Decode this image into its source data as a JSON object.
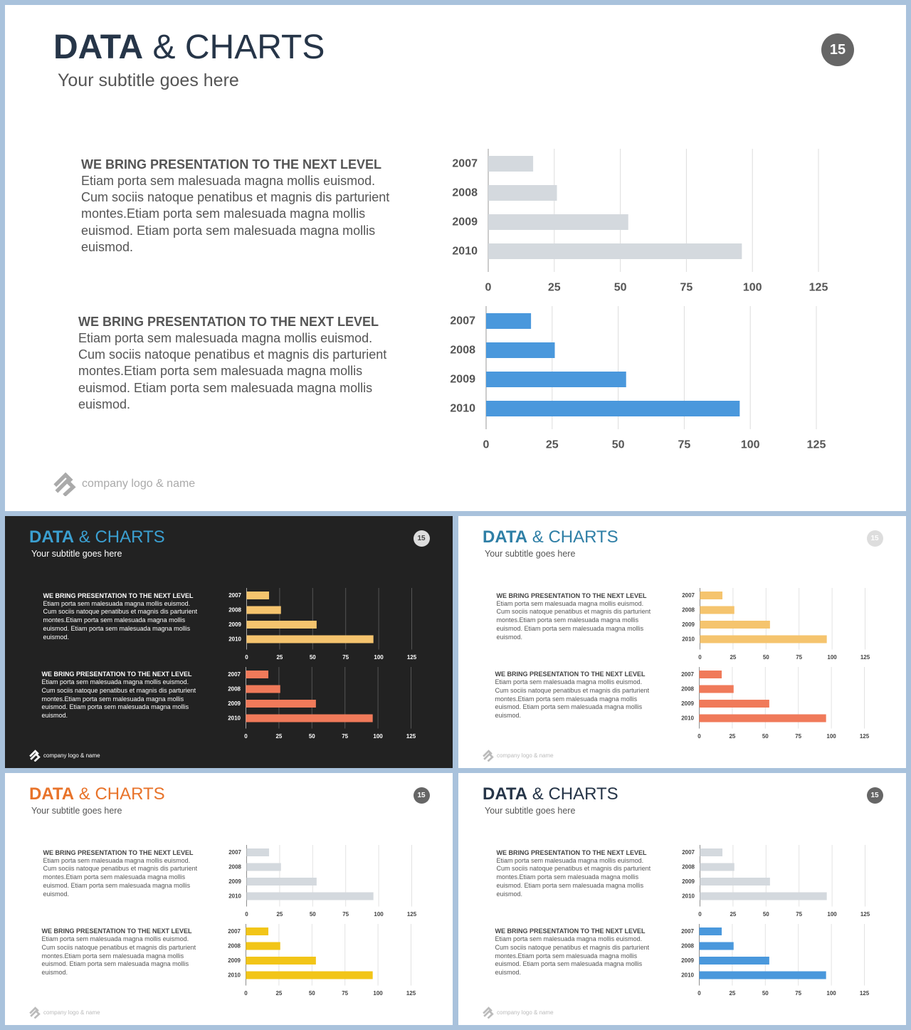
{
  "slides": [
    {
      "id": "main",
      "title_bold": "DATA",
      "title_rest": " & CHARTS",
      "subtitle": "Your subtitle goes here",
      "page_number": "15",
      "footer": "company logo & name",
      "theme": {
        "bg": "#ffffff",
        "title_bold": "#263548",
        "title_rest": "#263548",
        "subtitle": "#555555",
        "badge_bg": "#666666",
        "badge_text": "#ffffff",
        "heading": "#555555",
        "body": "#555555",
        "axis_label": "#555555",
        "grid": "#dddddd",
        "footer": "#aaaaaa"
      },
      "blocks": [
        {
          "heading": "WE BRING PRESENTATION TO THE NEXT LEVEL",
          "body": "Etiam porta sem malesuada magna mollis euismod. Cum sociis natoque penatibus et magnis dis parturient montes.Etiam porta sem malesuada magna mollis euismod. Etiam porta sem malesuada magna mollis euismod.",
          "bar_color": "#d4d9de"
        },
        {
          "heading": "WE BRING PRESENTATION TO THE NEXT LEVEL",
          "body": "Etiam porta sem malesuada magna mollis euismod. Cum sociis natoque penatibus et magnis dis parturient montes.Etiam porta sem malesuada magna mollis euismod. Etiam porta sem malesuada magna mollis euismod.",
          "bar_color": "#4a98dc"
        }
      ]
    },
    {
      "id": "dark",
      "title_bold": "DATA",
      "title_rest": " & CHARTS",
      "subtitle": "Your subtitle goes here",
      "page_number": "15",
      "footer": "company logo & name",
      "theme": {
        "bg": "#222222",
        "title_bold": "#3b9fd0",
        "title_rest": "#3b9fd0",
        "subtitle": "#ffffff",
        "badge_bg": "#dddddd",
        "badge_text": "#444444",
        "heading": "#ffffff",
        "body": "#ffffff",
        "axis_label": "#ffffff",
        "grid": "#555555",
        "footer": "#ffffff"
      },
      "blocks": [
        {
          "heading": "WE BRING PRESENTATION TO THE NEXT LEVEL",
          "body": "Etiam porta sem malesuada magna mollis euismod. Cum sociis natoque penatibus et magnis dis parturient montes.Etiam porta sem malesuada magna mollis euismod. Etiam porta sem malesuada magna mollis euismod.",
          "bar_color": "#f5c46e"
        },
        {
          "heading": "WE BRING PRESENTATION TO THE NEXT LEVEL",
          "body": "Etiam porta sem malesuada magna mollis euismod. Cum sociis natoque penatibus et magnis dis parturient montes.Etiam porta sem malesuada magna mollis euismod. Etiam porta sem malesuada magna mollis euismod.",
          "bar_color": "#f07a5a"
        }
      ]
    },
    {
      "id": "light-teal",
      "title_bold": "DATA",
      "title_rest": " & CHARTS",
      "subtitle": "Your subtitle goes here",
      "page_number": "15",
      "footer": "company logo & name",
      "theme": {
        "bg": "#ffffff",
        "title_bold": "#2f7fa6",
        "title_rest": "#2f7fa6",
        "subtitle": "#555555",
        "badge_bg": "#dddddd",
        "badge_text": "#ffffff",
        "heading": "#444444",
        "body": "#555555",
        "axis_label": "#444444",
        "grid": "#e2e2e2",
        "footer": "#bbbbbb"
      },
      "blocks": [
        {
          "heading": "WE BRING PRESENTATION TO THE NEXT LEVEL",
          "body": "Etiam porta sem malesuada magna mollis euismod. Cum sociis natoque penatibus et magnis dis parturient montes.Etiam porta sem malesuada magna mollis euismod. Etiam porta sem malesuada magna mollis euismod.",
          "bar_color": "#f5c46e"
        },
        {
          "heading": "WE BRING PRESENTATION TO THE NEXT LEVEL",
          "body": "Etiam porta sem malesuada magna mollis euismod. Cum sociis natoque penatibus et magnis dis parturient montes.Etiam porta sem malesuada magna mollis euismod. Etiam porta sem malesuada magna mollis euismod.",
          "bar_color": "#f07a5a"
        }
      ]
    },
    {
      "id": "light-orange",
      "title_bold": "DATA",
      "title_rest": " & CHARTS",
      "subtitle": "Your subtitle goes here",
      "page_number": "15",
      "footer": "company logo & name",
      "theme": {
        "bg": "#ffffff",
        "title_bold": "#e8732a",
        "title_rest": "#e8732a",
        "subtitle": "#555555",
        "badge_bg": "#666666",
        "badge_text": "#ffffff",
        "heading": "#444444",
        "body": "#555555",
        "axis_label": "#444444",
        "grid": "#e2e2e2",
        "footer": "#bbbbbb"
      },
      "blocks": [
        {
          "heading": "WE BRING PRESENTATION TO THE NEXT LEVEL",
          "body": "Etiam porta sem malesuada magna mollis euismod. Cum sociis natoque penatibus et magnis dis parturient montes.Etiam porta sem malesuada magna mollis euismod. Etiam porta sem malesuada magna mollis euismod.",
          "bar_color": "#d4d9de"
        },
        {
          "heading": "WE BRING PRESENTATION TO THE NEXT LEVEL",
          "body": "Etiam porta sem malesuada magna mollis euismod. Cum sociis natoque penatibus et magnis dis parturient montes.Etiam porta sem malesuada magna mollis euismod. Etiam porta sem malesuada magna mollis euismod.",
          "bar_color": "#f2c518"
        }
      ]
    },
    {
      "id": "light-navy",
      "title_bold": "DATA",
      "title_rest": " & CHARTS",
      "subtitle": "Your subtitle goes here",
      "page_number": "15",
      "footer": "company logo & name",
      "theme": {
        "bg": "#ffffff",
        "title_bold": "#263548",
        "title_rest": "#263548",
        "subtitle": "#555555",
        "badge_bg": "#666666",
        "badge_text": "#ffffff",
        "heading": "#444444",
        "body": "#555555",
        "axis_label": "#444444",
        "grid": "#e2e2e2",
        "footer": "#bbbbbb"
      },
      "blocks": [
        {
          "heading": "WE BRING PRESENTATION TO THE NEXT LEVEL",
          "body": "Etiam porta sem malesuada magna mollis euismod. Cum sociis natoque penatibus et magnis dis parturient montes.Etiam porta sem malesuada magna mollis euismod. Etiam porta sem malesuada magna mollis euismod.",
          "bar_color": "#d4d9de"
        },
        {
          "heading": "WE BRING PRESENTATION TO THE NEXT LEVEL",
          "body": "Etiam porta sem malesuada magna mollis euismod. Cum sociis natoque penatibus et magnis dis parturient montes.Etiam porta sem malesuada magna mollis euismod. Etiam porta sem malesuada magna mollis euismod.",
          "bar_color": "#4a98dc"
        }
      ]
    }
  ],
  "chart_data": {
    "type": "bar",
    "orientation": "horizontal",
    "categories": [
      "2007",
      "2008",
      "2009",
      "2010"
    ],
    "values": [
      17,
      26,
      53,
      96
    ],
    "xlim": [
      0,
      125
    ],
    "xticks": [
      0,
      25,
      50,
      75,
      100,
      125
    ],
    "title": "",
    "xlabel": "",
    "ylabel": "",
    "grid": true,
    "legend": false
  }
}
